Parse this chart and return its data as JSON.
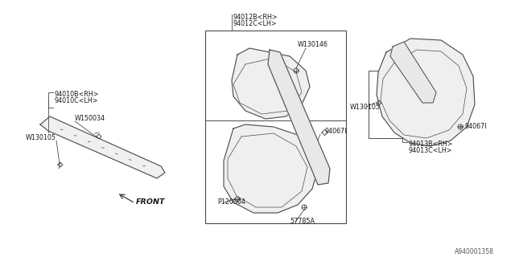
{
  "bg_color": "#ffffff",
  "line_color": "#4a4a4a",
  "diagram_color": "#4a4a4a",
  "font_size_label": 5.8,
  "font_size_catalog": 5.5,
  "catalog_number": "A940001358",
  "labels": {
    "part1a": "94010B<RH>",
    "part1b": "94010C<LH>",
    "part1_fastener1": "W150034",
    "part1_fastener2": "W130105",
    "part2a": "94012B<RH>",
    "part2b": "94012C<LH>",
    "part2_fastener": "W130146",
    "part2_clip1": "94067I",
    "part2_clip2": "P120004",
    "part2_clip3": "57785A",
    "part3a": "94013B<RH>",
    "part3b": "94013C<LH>",
    "part3_fastener": "W130105",
    "part3_clip": "94067I",
    "front_label": "FRONT"
  }
}
